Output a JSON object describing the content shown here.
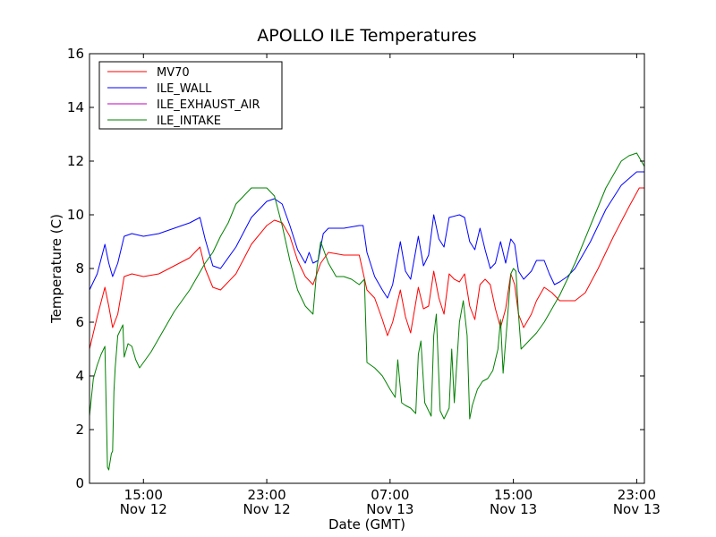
{
  "chart_data": {
    "type": "line",
    "title": "APOLLO ILE Temperatures",
    "xlabel": "Date (GMT)",
    "ylabel": "Temperature (C)",
    "x_unit": "hours",
    "xlim": [
      "Nov 12 11:30",
      "Nov 13 23:30"
    ],
    "ylim": [
      0,
      16
    ],
    "yticks": [
      0,
      2,
      4,
      6,
      8,
      10,
      12,
      14,
      16
    ],
    "xticks": [
      {
        "x": "Nov 12 15:00",
        "time": "15:00",
        "date": "Nov 12"
      },
      {
        "x": "Nov 12 23:00",
        "time": "23:00",
        "date": "Nov 12"
      },
      {
        "x": "Nov 13 07:00",
        "time": "07:00",
        "date": "Nov 13"
      },
      {
        "x": "Nov 13 15:00",
        "time": "15:00",
        "date": "Nov 13"
      },
      {
        "x": "Nov 13 23:00",
        "time": "23:00",
        "date": "Nov 13"
      }
    ],
    "grid": false,
    "legend_position": "top-left",
    "series": [
      {
        "name": "MV70",
        "color": "#ff0000",
        "points": [
          [
            "Nov 12 11:30",
            5.0
          ],
          [
            "Nov 12 12:00",
            6.2
          ],
          [
            "Nov 12 12:30",
            7.3
          ],
          [
            "Nov 12 12:45",
            6.6
          ],
          [
            "Nov 12 13:00",
            5.8
          ],
          [
            "Nov 12 13:20",
            6.3
          ],
          [
            "Nov 12 13:45",
            7.7
          ],
          [
            "Nov 12 14:15",
            7.8
          ],
          [
            "Nov 12 15:00",
            7.7
          ],
          [
            "Nov 12 16:00",
            7.8
          ],
          [
            "Nov 12 17:00",
            8.1
          ],
          [
            "Nov 12 18:00",
            8.4
          ],
          [
            "Nov 12 18:40",
            8.8
          ],
          [
            "Nov 12 19:00",
            8.0
          ],
          [
            "Nov 12 19:30",
            7.3
          ],
          [
            "Nov 12 20:00",
            7.2
          ],
          [
            "Nov 12 21:00",
            7.8
          ],
          [
            "Nov 12 22:00",
            8.9
          ],
          [
            "Nov 12 23:00",
            9.6
          ],
          [
            "Nov 12 23:30",
            9.8
          ],
          [
            "Nov 13 00:00",
            9.7
          ],
          [
            "Nov 13 00:30",
            9.2
          ],
          [
            "Nov 13 01:00",
            8.3
          ],
          [
            "Nov 13 01:30",
            7.7
          ],
          [
            "Nov 13 02:00",
            7.4
          ],
          [
            "Nov 13 02:30",
            8.2
          ],
          [
            "Nov 13 03:00",
            8.6
          ],
          [
            "Nov 13 04:00",
            8.5
          ],
          [
            "Nov 13 05:00",
            8.5
          ],
          [
            "Nov 13 05:30",
            7.2
          ],
          [
            "Nov 13 06:00",
            6.9
          ],
          [
            "Nov 13 06:30",
            6.1
          ],
          [
            "Nov 13 06:50",
            5.5
          ],
          [
            "Nov 13 07:10",
            6.0
          ],
          [
            "Nov 13 07:40",
            7.2
          ],
          [
            "Nov 13 08:00",
            6.2
          ],
          [
            "Nov 13 08:20",
            5.6
          ],
          [
            "Nov 13 08:50",
            7.3
          ],
          [
            "Nov 13 09:10",
            6.5
          ],
          [
            "Nov 13 09:30",
            6.6
          ],
          [
            "Nov 13 09:50",
            7.9
          ],
          [
            "Nov 13 10:10",
            6.9
          ],
          [
            "Nov 13 10:30",
            6.3
          ],
          [
            "Nov 13 10:50",
            7.8
          ],
          [
            "Nov 13 11:10",
            7.6
          ],
          [
            "Nov 13 11:30",
            7.5
          ],
          [
            "Nov 13 11:50",
            7.8
          ],
          [
            "Nov 13 12:10",
            6.6
          ],
          [
            "Nov 13 12:30",
            6.1
          ],
          [
            "Nov 13 12:50",
            7.4
          ],
          [
            "Nov 13 13:10",
            7.6
          ],
          [
            "Nov 13 13:30",
            7.4
          ],
          [
            "Nov 13 13:50",
            6.5
          ],
          [
            "Nov 13 14:10",
            5.8
          ],
          [
            "Nov 13 14:30",
            6.5
          ],
          [
            "Nov 13 14:50",
            7.8
          ],
          [
            "Nov 13 15:05",
            7.4
          ],
          [
            "Nov 13 15:20",
            6.3
          ],
          [
            "Nov 13 15:40",
            5.8
          ],
          [
            "Nov 13 16:10",
            6.3
          ],
          [
            "Nov 13 16:30",
            6.8
          ],
          [
            "Nov 13 17:00",
            7.3
          ],
          [
            "Nov 13 17:30",
            7.1
          ],
          [
            "Nov 13 18:00",
            6.8
          ],
          [
            "Nov 13 18:40",
            6.8
          ],
          [
            "Nov 13 19:00",
            6.8
          ],
          [
            "Nov 13 19:40",
            7.1
          ],
          [
            "Nov 13 20:30",
            8.0
          ],
          [
            "Nov 13 21:30",
            9.2
          ],
          [
            "Nov 13 22:30",
            10.3
          ],
          [
            "Nov 13 23:10",
            11.0
          ],
          [
            "Nov 13 23:30",
            11.0
          ]
        ]
      },
      {
        "name": "ILE_WALL",
        "color": "#0000ff",
        "points": [
          [
            "Nov 12 11:30",
            7.2
          ],
          [
            "Nov 12 12:00",
            7.8
          ],
          [
            "Nov 12 12:30",
            8.9
          ],
          [
            "Nov 12 12:45",
            8.2
          ],
          [
            "Nov 12 13:00",
            7.7
          ],
          [
            "Nov 12 13:20",
            8.2
          ],
          [
            "Nov 12 13:45",
            9.2
          ],
          [
            "Nov 12 14:15",
            9.3
          ],
          [
            "Nov 12 15:00",
            9.2
          ],
          [
            "Nov 12 16:00",
            9.3
          ],
          [
            "Nov 12 17:00",
            9.5
          ],
          [
            "Nov 12 18:00",
            9.7
          ],
          [
            "Nov 12 18:40",
            9.9
          ],
          [
            "Nov 12 19:00",
            9.1
          ],
          [
            "Nov 12 19:30",
            8.1
          ],
          [
            "Nov 12 20:00",
            8.0
          ],
          [
            "Nov 12 21:00",
            8.8
          ],
          [
            "Nov 12 22:00",
            9.9
          ],
          [
            "Nov 12 23:00",
            10.5
          ],
          [
            "Nov 12 23:30",
            10.6
          ],
          [
            "Nov 13 00:00",
            10.4
          ],
          [
            "Nov 13 00:30",
            9.6
          ],
          [
            "Nov 13 01:00",
            8.7
          ],
          [
            "Nov 13 01:30",
            8.2
          ],
          [
            "Nov 13 01:45",
            8.6
          ],
          [
            "Nov 13 02:00",
            8.2
          ],
          [
            "Nov 13 02:20",
            8.3
          ],
          [
            "Nov 13 02:40",
            9.3
          ],
          [
            "Nov 13 03:00",
            9.5
          ],
          [
            "Nov 13 04:00",
            9.5
          ],
          [
            "Nov 13 05:00",
            9.6
          ],
          [
            "Nov 13 05:15",
            9.6
          ],
          [
            "Nov 13 05:30",
            8.6
          ],
          [
            "Nov 13 06:00",
            7.7
          ],
          [
            "Nov 13 06:30",
            7.2
          ],
          [
            "Nov 13 06:50",
            6.9
          ],
          [
            "Nov 13 07:10",
            7.4
          ],
          [
            "Nov 13 07:40",
            9.0
          ],
          [
            "Nov 13 08:00",
            7.9
          ],
          [
            "Nov 13 08:20",
            7.6
          ],
          [
            "Nov 13 08:50",
            9.2
          ],
          [
            "Nov 13 09:10",
            8.1
          ],
          [
            "Nov 13 09:30",
            8.5
          ],
          [
            "Nov 13 09:50",
            10.0
          ],
          [
            "Nov 13 10:10",
            9.1
          ],
          [
            "Nov 13 10:30",
            8.8
          ],
          [
            "Nov 13 10:50",
            9.9
          ],
          [
            "Nov 13 11:30",
            10.0
          ],
          [
            "Nov 13 11:50",
            9.9
          ],
          [
            "Nov 13 12:10",
            9.0
          ],
          [
            "Nov 13 12:30",
            8.7
          ],
          [
            "Nov 13 12:50",
            9.5
          ],
          [
            "Nov 13 13:10",
            8.7
          ],
          [
            "Nov 13 13:30",
            8.0
          ],
          [
            "Nov 13 13:50",
            8.2
          ],
          [
            "Nov 13 14:10",
            9.0
          ],
          [
            "Nov 13 14:30",
            8.2
          ],
          [
            "Nov 13 14:50",
            9.1
          ],
          [
            "Nov 13 15:05",
            8.9
          ],
          [
            "Nov 13 15:20",
            7.9
          ],
          [
            "Nov 13 15:40",
            7.6
          ],
          [
            "Nov 13 16:10",
            7.9
          ],
          [
            "Nov 13 16:30",
            8.3
          ],
          [
            "Nov 13 17:00",
            8.3
          ],
          [
            "Nov 13 17:20",
            7.8
          ],
          [
            "Nov 13 17:40",
            7.4
          ],
          [
            "Nov 13 18:00",
            7.5
          ],
          [
            "Nov 13 18:30",
            7.7
          ],
          [
            "Nov 13 19:00",
            8.0
          ],
          [
            "Nov 13 20:00",
            9.0
          ],
          [
            "Nov 13 21:00",
            10.2
          ],
          [
            "Nov 13 22:00",
            11.1
          ],
          [
            "Nov 13 23:00",
            11.6
          ],
          [
            "Nov 13 23:30",
            11.6
          ]
        ]
      },
      {
        "name": "ILE_EXHAUST_AIR",
        "color": "#bf00bf",
        "points": []
      },
      {
        "name": "ILE_INTAKE",
        "color": "#008000",
        "points": [
          [
            "Nov 12 11:30",
            2.5
          ],
          [
            "Nov 12 11:45",
            3.9
          ],
          [
            "Nov 12 12:00",
            4.4
          ],
          [
            "Nov 12 12:15",
            4.8
          ],
          [
            "Nov 12 12:30",
            5.1
          ],
          [
            "Nov 12 12:35",
            2.8
          ],
          [
            "Nov 12 12:40",
            0.6
          ],
          [
            "Nov 12 12:45",
            0.5
          ],
          [
            "Nov 12 12:55",
            1.1
          ],
          [
            "Nov 12 13:00",
            1.2
          ],
          [
            "Nov 12 13:05",
            3.4
          ],
          [
            "Nov 12 13:10",
            4.3
          ],
          [
            "Nov 12 13:20",
            5.5
          ],
          [
            "Nov 12 13:30",
            5.7
          ],
          [
            "Nov 12 13:40",
            5.9
          ],
          [
            "Nov 12 13:45",
            4.7
          ],
          [
            "Nov 12 14:00",
            5.2
          ],
          [
            "Nov 12 14:15",
            5.1
          ],
          [
            "Nov 12 14:30",
            4.6
          ],
          [
            "Nov 12 14:45",
            4.3
          ],
          [
            "Nov 12 15:00",
            4.5
          ],
          [
            "Nov 12 15:30",
            4.9
          ],
          [
            "Nov 12 16:00",
            5.4
          ],
          [
            "Nov 12 17:00",
            6.4
          ],
          [
            "Nov 12 18:00",
            7.2
          ],
          [
            "Nov 12 18:30",
            7.7
          ],
          [
            "Nov 12 19:00",
            8.2
          ],
          [
            "Nov 12 19:30",
            8.6
          ],
          [
            "Nov 12 20:00",
            9.2
          ],
          [
            "Nov 12 20:30",
            9.7
          ],
          [
            "Nov 12 21:00",
            10.4
          ],
          [
            "Nov 12 22:00",
            11.0
          ],
          [
            "Nov 12 22:30",
            11.0
          ],
          [
            "Nov 12 23:00",
            11.0
          ],
          [
            "Nov 12 23:30",
            10.7
          ],
          [
            "Nov 13 00:00",
            9.6
          ],
          [
            "Nov 13 00:30",
            8.3
          ],
          [
            "Nov 13 01:00",
            7.2
          ],
          [
            "Nov 13 01:30",
            6.6
          ],
          [
            "Nov 13 02:00",
            6.3
          ],
          [
            "Nov 13 02:15",
            8.0
          ],
          [
            "Nov 13 02:30",
            9.0
          ],
          [
            "Nov 13 03:00",
            8.2
          ],
          [
            "Nov 13 03:30",
            7.7
          ],
          [
            "Nov 13 04:00",
            7.7
          ],
          [
            "Nov 13 04:30",
            7.6
          ],
          [
            "Nov 13 05:00",
            7.4
          ],
          [
            "Nov 13 05:20",
            7.6
          ],
          [
            "Nov 13 05:30",
            4.5
          ],
          [
            "Nov 13 06:00",
            4.3
          ],
          [
            "Nov 13 06:30",
            4.0
          ],
          [
            "Nov 13 07:00",
            3.5
          ],
          [
            "Nov 13 07:20",
            3.2
          ],
          [
            "Nov 13 07:30",
            4.6
          ],
          [
            "Nov 13 07:45",
            3.0
          ],
          [
            "Nov 13 08:00",
            2.9
          ],
          [
            "Nov 13 08:20",
            2.8
          ],
          [
            "Nov 13 08:40",
            2.6
          ],
          [
            "Nov 13 08:50",
            4.8
          ],
          [
            "Nov 13 09:00",
            5.3
          ],
          [
            "Nov 13 09:15",
            3.0
          ],
          [
            "Nov 13 09:30",
            2.7
          ],
          [
            "Nov 13 09:40",
            2.5
          ],
          [
            "Nov 13 09:50",
            5.5
          ],
          [
            "Nov 13 10:00",
            6.3
          ],
          [
            "Nov 13 10:15",
            2.7
          ],
          [
            "Nov 13 10:30",
            2.4
          ],
          [
            "Nov 13 10:50",
            2.8
          ],
          [
            "Nov 13 11:00",
            5.0
          ],
          [
            "Nov 13 11:10",
            3.0
          ],
          [
            "Nov 13 11:30",
            6.0
          ],
          [
            "Nov 13 11:45",
            6.8
          ],
          [
            "Nov 13 12:00",
            5.5
          ],
          [
            "Nov 13 12:10",
            2.4
          ],
          [
            "Nov 13 12:20",
            2.9
          ],
          [
            "Nov 13 12:40",
            3.5
          ],
          [
            "Nov 13 13:00",
            3.8
          ],
          [
            "Nov 13 13:20",
            3.9
          ],
          [
            "Nov 13 13:40",
            4.2
          ],
          [
            "Nov 13 14:00",
            5.0
          ],
          [
            "Nov 13 14:10",
            6.1
          ],
          [
            "Nov 13 14:20",
            4.1
          ],
          [
            "Nov 13 14:35",
            5.9
          ],
          [
            "Nov 13 14:50",
            7.8
          ],
          [
            "Nov 13 15:00",
            8.0
          ],
          [
            "Nov 13 15:10",
            7.9
          ],
          [
            "Nov 13 15:20",
            6.3
          ],
          [
            "Nov 13 15:30",
            5.0
          ],
          [
            "Nov 13 16:00",
            5.3
          ],
          [
            "Nov 13 16:30",
            5.6
          ],
          [
            "Nov 13 17:00",
            6.0
          ],
          [
            "Nov 13 17:30",
            6.5
          ],
          [
            "Nov 13 18:00",
            7.0
          ],
          [
            "Nov 13 18:30",
            7.6
          ],
          [
            "Nov 13 19:00",
            8.2
          ],
          [
            "Nov 13 20:00",
            9.6
          ],
          [
            "Nov 13 21:00",
            11.0
          ],
          [
            "Nov 13 22:00",
            12.0
          ],
          [
            "Nov 13 22:30",
            12.2
          ],
          [
            "Nov 13 23:00",
            12.3
          ],
          [
            "Nov 13 23:30",
            11.8
          ]
        ]
      }
    ]
  }
}
